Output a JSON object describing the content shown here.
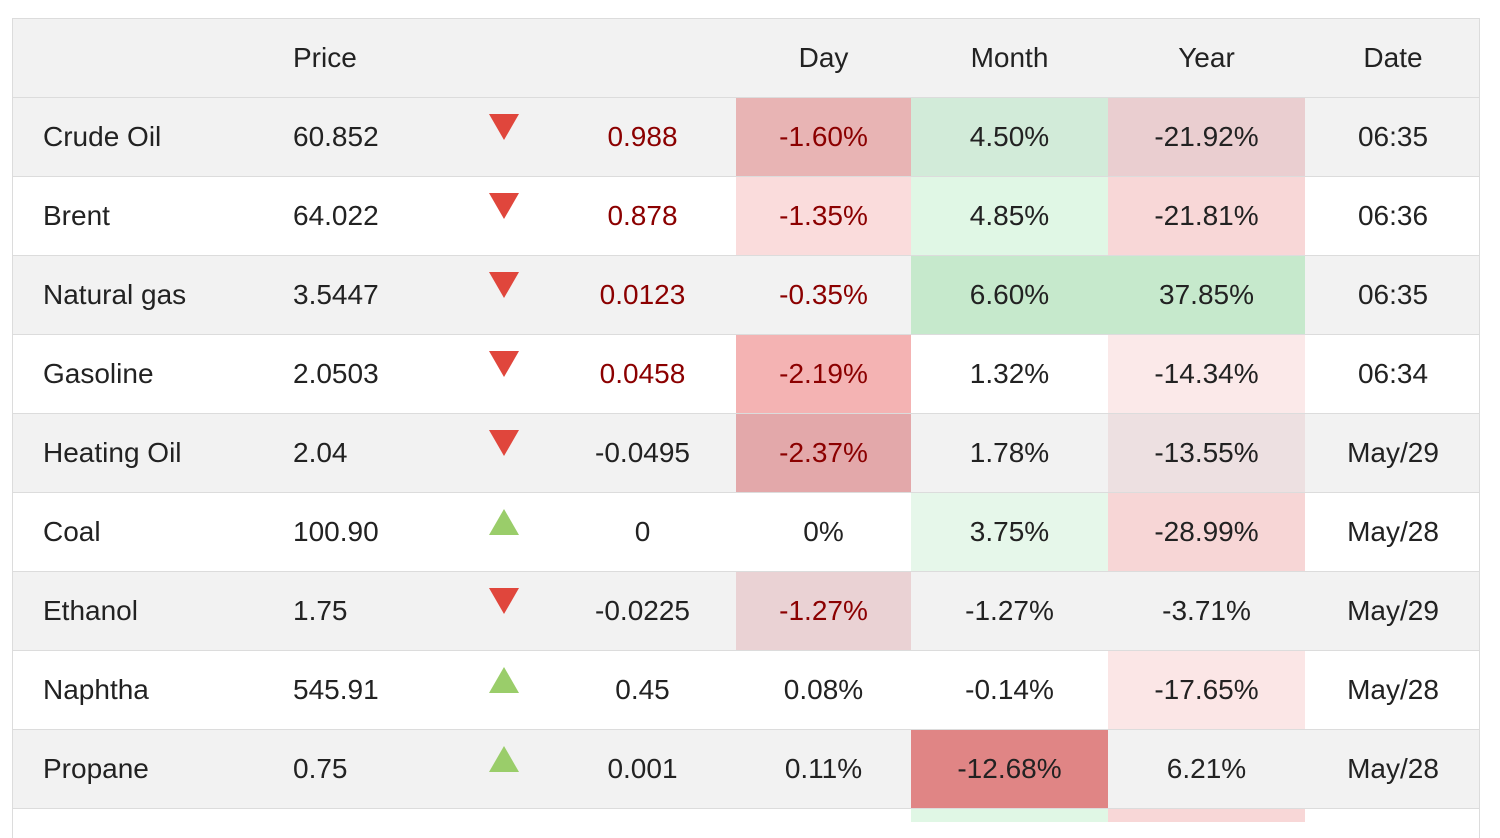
{
  "headers": {
    "name": "",
    "price": "Price",
    "arrow": "",
    "change": "",
    "day": "Day",
    "month": "Month",
    "year": "Year",
    "date": "Date"
  },
  "rows": [
    {
      "name": "Crude Oil",
      "price": "60.852",
      "direction": "down",
      "change": "0.988",
      "change_negative": true,
      "day": "-1.60%",
      "day_bg": "#e8b4b4",
      "month": "4.50%",
      "month_bg": "#d2ebd9",
      "year": "-21.92%",
      "year_bg": "#eaced0",
      "date": "06:35"
    },
    {
      "name": "Brent",
      "price": "64.022",
      "direction": "down",
      "change": "0.878",
      "change_negative": true,
      "day": "-1.35%",
      "day_bg": "#fadcdc",
      "month": "4.85%",
      "month_bg": "#e0f7e5",
      "year": "-21.81%",
      "year_bg": "#f8d7d7",
      "date": "06:36"
    },
    {
      "name": "Natural gas",
      "price": "3.5447",
      "direction": "down",
      "change": "0.0123",
      "change_negative": true,
      "day": "-0.35%",
      "day_bg": "",
      "month": "6.60%",
      "month_bg": "#c6e9cc",
      "year": "37.85%",
      "year_bg": "#c6e9cc",
      "date": "06:35"
    },
    {
      "name": "Gasoline",
      "price": "2.0503",
      "direction": "down",
      "change": "0.0458",
      "change_negative": true,
      "day": "-2.19%",
      "day_bg": "#f4b3b3",
      "month": "1.32%",
      "month_bg": "",
      "year": "-14.34%",
      "year_bg": "#fbe9e9",
      "date": "06:34"
    },
    {
      "name": "Heating Oil",
      "price": "2.04",
      "direction": "down",
      "change": "-0.0495",
      "change_negative": false,
      "day": "-2.37%",
      "day_bg": "#e3a8aa",
      "month": "1.78%",
      "month_bg": "",
      "year": "-13.55%",
      "year_bg": "#ede0e1",
      "date": "May/29"
    },
    {
      "name": "Coal",
      "price": "100.90",
      "direction": "up",
      "change": "0",
      "change_negative": false,
      "day": "0%",
      "day_bg": "",
      "month": "3.75%",
      "month_bg": "#e6f7ea",
      "year": "-28.99%",
      "year_bg": "#f7d6d6",
      "date": "May/28"
    },
    {
      "name": "Ethanol",
      "price": "1.75",
      "direction": "down",
      "change": "-0.0225",
      "change_negative": false,
      "day": "-1.27%",
      "day_bg": "#ead2d4",
      "month": "-1.27%",
      "month_bg": "",
      "year": "-3.71%",
      "year_bg": "",
      "date": "May/29"
    },
    {
      "name": "Naphtha",
      "price": "545.91",
      "direction": "up",
      "change": "0.45",
      "change_negative": false,
      "day": "0.08%",
      "day_bg": "",
      "month": "-0.14%",
      "month_bg": "",
      "year": "-17.65%",
      "year_bg": "#fbe6e6",
      "date": "May/28"
    },
    {
      "name": "Propane",
      "price": "0.75",
      "direction": "up",
      "change": "0.001",
      "change_negative": false,
      "day": "0.11%",
      "day_bg": "",
      "month": "-12.68%",
      "month_bg": "#e08585",
      "year": "6.21%",
      "year_bg": "",
      "date": "May/28"
    }
  ],
  "colors": {
    "arrow_down": "#e0463c",
    "arrow_up": "#9acd6a",
    "negative_change_text": "#8b0000",
    "stripe": "#f2f2f2",
    "border": "#dcdcdc"
  },
  "partial_row": {
    "month_bg": "#e0f7e5",
    "year_bg": "#f8d7d7"
  }
}
